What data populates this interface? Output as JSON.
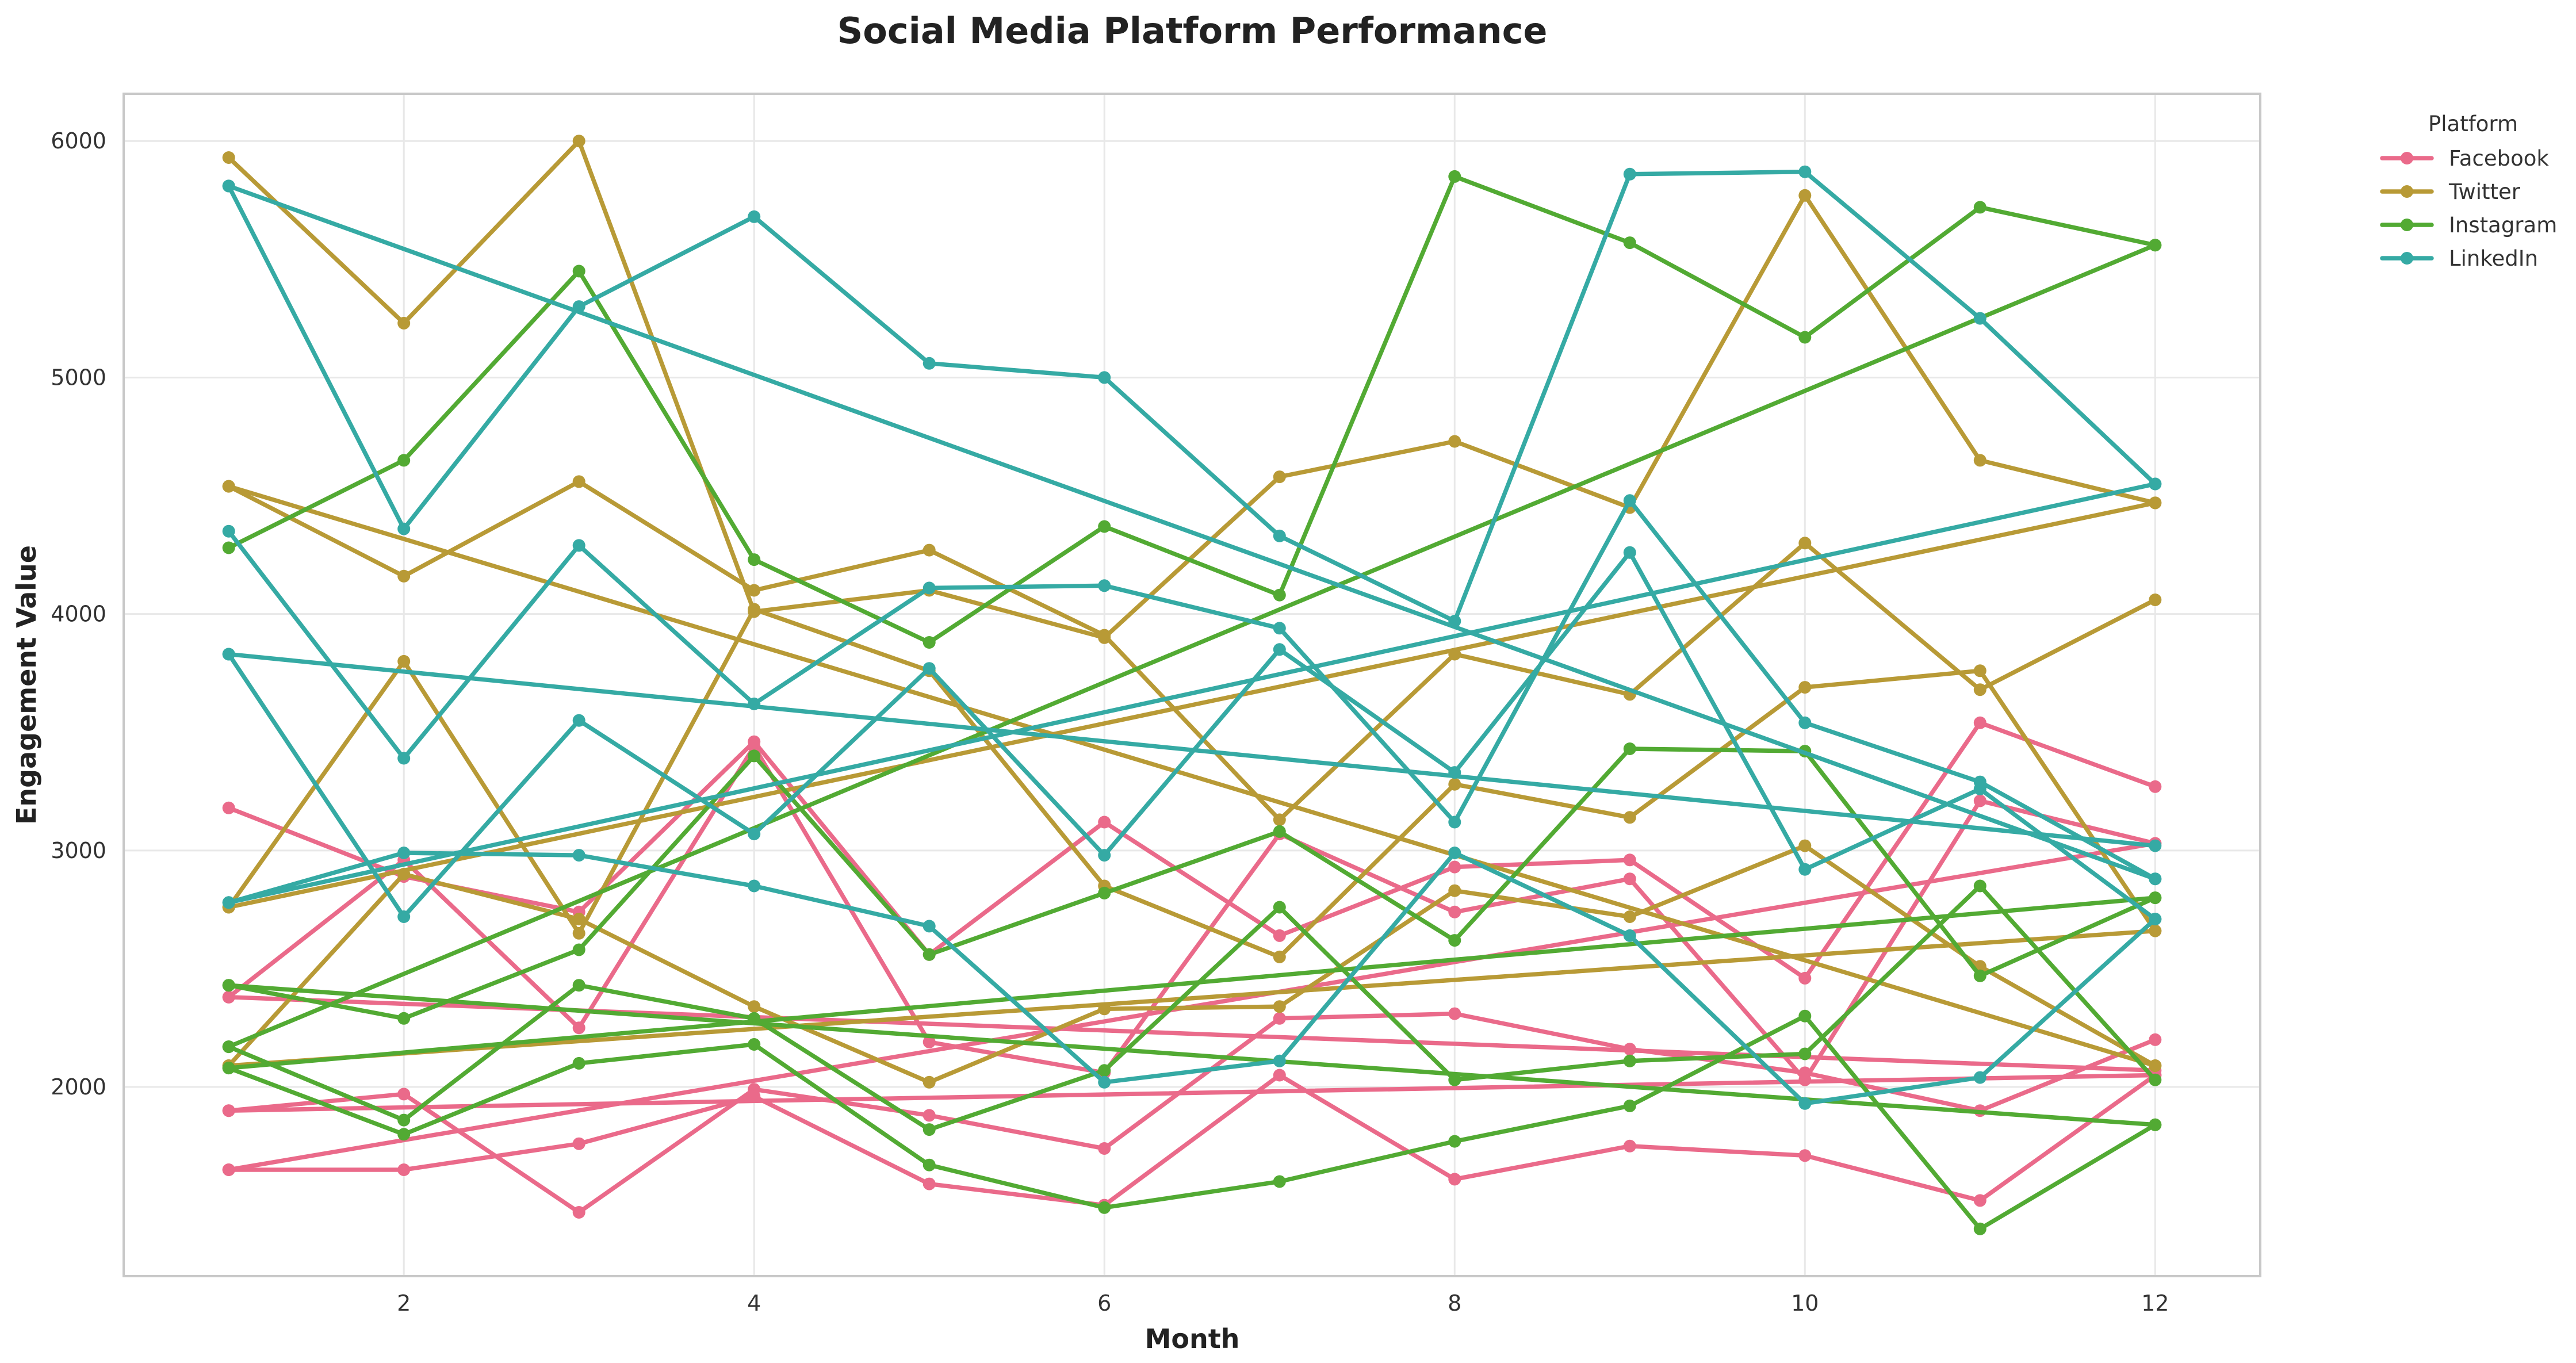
{
  "chart_data": {
    "type": "line",
    "title": "Social Media Platform Performance",
    "xlabel": "Month",
    "ylabel": "Engagement Value",
    "xlim": [
      0.4,
      12.6
    ],
    "ylim": [
      1200,
      6200
    ],
    "xticks": [
      2,
      4,
      6,
      8,
      10,
      12
    ],
    "yticks": [
      2000,
      3000,
      4000,
      5000,
      6000
    ],
    "grid": true,
    "legend": {
      "title": "Platform",
      "placement": "outside-top-right",
      "entries": [
        {
          "name": "Facebook",
          "color": "#ea6a8a"
        },
        {
          "name": "Twitter",
          "color": "#b89a36"
        },
        {
          "name": "Instagram",
          "color": "#52aa33"
        },
        {
          "name": "LinkedIn",
          "color": "#35aaa4"
        }
      ]
    },
    "x": [
      1,
      2,
      3,
      4,
      5,
      6,
      7,
      8,
      9,
      10,
      11,
      12
    ],
    "series": [
      {
        "name": "Facebook",
        "color": "#ea6a8a",
        "lines": [
          [
            3180,
            2890,
            2740,
            3460,
            2560,
            3120,
            2640,
            2930,
            2960,
            2460,
            3540,
            3270
          ],
          [
            2380,
            2960,
            2250,
            3440,
            2190,
            2060,
            3070,
            2740,
            2880,
            2030,
            3210,
            3030
          ],
          [
            1900,
            1970,
            1470,
            1990,
            1880,
            1740,
            2290,
            2310,
            2160,
            2060,
            1900,
            2200
          ],
          [
            1650,
            1650,
            1760,
            1960,
            1590,
            1500,
            2050,
            1610,
            1750,
            1710,
            1520,
            2050
          ],
          [
            1650,
            null,
            null,
            null,
            null,
            null,
            null,
            null,
            null,
            null,
            null,
            3030
          ],
          [
            1900,
            null,
            null,
            null,
            null,
            null,
            null,
            null,
            null,
            null,
            null,
            2050
          ],
          [
            2380,
            null,
            null,
            null,
            null,
            null,
            null,
            null,
            null,
            null,
            null,
            2070
          ]
        ]
      },
      {
        "name": "Twitter",
        "color": "#b89a36",
        "lines": [
          [
            5930,
            5230,
            6000,
            4010,
            4100,
            3900,
            4580,
            4730,
            4450,
            5770,
            4650,
            4470
          ],
          [
            4540,
            4160,
            4560,
            4100,
            4270,
            3910,
            3130,
            3830,
            3660,
            4300,
            3680,
            4060
          ],
          [
            2760,
            3800,
            2650,
            4020,
            3760,
            2850,
            2550,
            3280,
            3140,
            3690,
            3760,
            2660
          ],
          [
            2090,
            2900,
            2710,
            2340,
            2020,
            2330,
            2340,
            2830,
            2720,
            3020,
            2510,
            2090
          ],
          [
            4540,
            null,
            null,
            null,
            null,
            null,
            null,
            null,
            null,
            null,
            null,
            2090
          ],
          [
            2760,
            null,
            null,
            null,
            null,
            null,
            null,
            null,
            null,
            null,
            null,
            4470
          ],
          [
            2090,
            null,
            null,
            null,
            null,
            null,
            null,
            null,
            null,
            null,
            null,
            2660
          ]
        ]
      },
      {
        "name": "Instagram",
        "color": "#52aa33",
        "lines": [
          [
            4280,
            4650,
            5450,
            4230,
            3880,
            4370,
            4080,
            5850,
            5570,
            5170,
            5720,
            5560
          ],
          [
            2430,
            2290,
            2580,
            3400,
            2560,
            2820,
            3080,
            2620,
            3430,
            3420,
            2470,
            2800
          ],
          [
            2170,
            1860,
            2430,
            2290,
            1820,
            2070,
            2760,
            2030,
            2110,
            2140,
            2850,
            2030
          ],
          [
            2080,
            1800,
            2100,
            2180,
            1670,
            1490,
            1600,
            1770,
            1920,
            2300,
            1400,
            1840
          ],
          [
            2170,
            null,
            null,
            null,
            null,
            null,
            null,
            null,
            null,
            null,
            null,
            5560
          ],
          [
            2430,
            null,
            null,
            null,
            null,
            null,
            null,
            null,
            null,
            null,
            null,
            1840
          ],
          [
            2080,
            null,
            null,
            null,
            null,
            null,
            null,
            null,
            null,
            null,
            null,
            2800
          ]
        ]
      },
      {
        "name": "LinkedIn",
        "color": "#35aaa4",
        "lines": [
          [
            5810,
            4360,
            5300,
            5680,
            5060,
            5000,
            4330,
            3970,
            5860,
            5870,
            5250,
            4550
          ],
          [
            4350,
            3390,
            4290,
            3620,
            4110,
            4120,
            3940,
            3120,
            4480,
            3540,
            3290,
            2880
          ],
          [
            3830,
            2720,
            3550,
            3070,
            3770,
            2980,
            3850,
            3330,
            4260,
            2920,
            3260,
            2710
          ],
          [
            2780,
            2990,
            2980,
            2850,
            2680,
            2020,
            2110,
            2990,
            2640,
            1930,
            2040,
            2710
          ],
          [
            5810,
            null,
            null,
            null,
            null,
            null,
            null,
            null,
            null,
            null,
            null,
            2880
          ],
          [
            3830,
            null,
            null,
            null,
            null,
            null,
            null,
            null,
            null,
            null,
            null,
            3020
          ],
          [
            2780,
            null,
            null,
            null,
            null,
            null,
            null,
            null,
            null,
            null,
            null,
            4550
          ]
        ]
      }
    ]
  }
}
